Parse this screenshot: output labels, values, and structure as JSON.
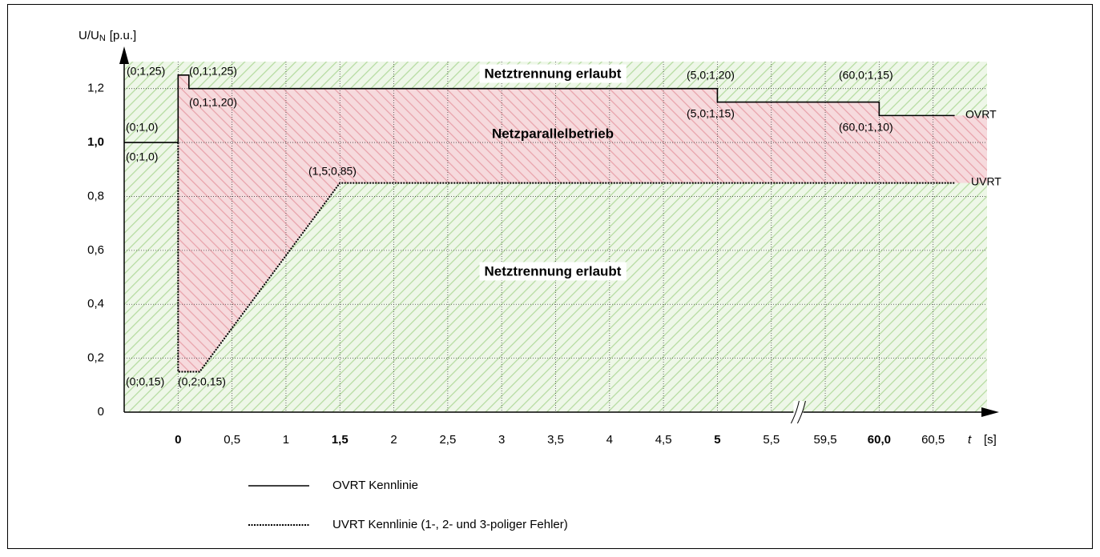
{
  "chart_data": {
    "type": "line",
    "y_label": {
      "main": "U/U",
      "sub": "N",
      "unit": "[p.u.]"
    },
    "x_label": {
      "main": "t",
      "unit": "[s]"
    },
    "xlim": [
      -0.5,
      61.0
    ],
    "ylim": [
      0,
      1.3
    ],
    "xticks": [
      {
        "value": 0,
        "label": "0",
        "bold": true
      },
      {
        "value": 0.5,
        "label": "0,5"
      },
      {
        "value": 1,
        "label": "1"
      },
      {
        "value": 1.5,
        "label": "1,5",
        "bold": true
      },
      {
        "value": 2,
        "label": "2"
      },
      {
        "value": 2.5,
        "label": "2,5"
      },
      {
        "value": 3,
        "label": "3"
      },
      {
        "value": 3.5,
        "label": "3,5"
      },
      {
        "value": 4,
        "label": "4"
      },
      {
        "value": 4.5,
        "label": "4,5"
      },
      {
        "value": 5,
        "label": "5",
        "bold": true
      },
      {
        "value": 5.5,
        "label": "5,5"
      },
      {
        "value": 59.5,
        "label": "59,5"
      },
      {
        "value": 60.0,
        "label": "60,0",
        "bold": true
      },
      {
        "value": 60.5,
        "label": "60,5"
      }
    ],
    "yticks": [
      {
        "value": 0,
        "label": "0"
      },
      {
        "value": 0.2,
        "label": "0,2"
      },
      {
        "value": 0.4,
        "label": "0,4"
      },
      {
        "value": 0.6,
        "label": "0,6"
      },
      {
        "value": 0.8,
        "label": "0,8"
      },
      {
        "value": 1.0,
        "label": "1,0",
        "bold": true
      },
      {
        "value": 1.2,
        "label": "1,2"
      }
    ],
    "grid": true,
    "series": [
      {
        "name": "OVRT",
        "color": "#000000",
        "style": "solid",
        "x": [
          -0.5,
          0,
          0,
          0.1,
          0.1,
          5,
          5,
          60,
          60,
          60.7
        ],
        "values": [
          1.0,
          1.0,
          1.25,
          1.25,
          1.2,
          1.2,
          1.15,
          1.15,
          1.1,
          1.1
        ]
      },
      {
        "name": "UVRT",
        "color": "#000000",
        "style": "dashed",
        "x": [
          0,
          0,
          0.2,
          1.5,
          60.7
        ],
        "values": [
          1.0,
          0.15,
          0.15,
          0.85,
          0.85
        ]
      }
    ],
    "regions": [
      {
        "label": "Netztrennung erlaubt",
        "color": "#00a050"
      },
      {
        "label": "Netzparallelbetrieb",
        "color": "#e00000"
      },
      {
        "label": "Netztrennung erlaubt",
        "color": "#00a050"
      }
    ],
    "point_labels": [
      "(0;1,25)",
      "(0,1;1,25)",
      "(0,1;1,20)",
      "(0;1,0)",
      "(0;1,0)",
      "(1,5;0,85)",
      "(0;0,15)",
      "(0,2;0,15)",
      "(5,0;1,20)",
      "(5,0;1,15)",
      "(60,0;1,15)",
      "(60,0;1,10)"
    ],
    "legend": [
      "OVRT Kennlinie",
      "UVRT Kennlinie (1-, 2- und 3-poliger Fehler)"
    ]
  }
}
